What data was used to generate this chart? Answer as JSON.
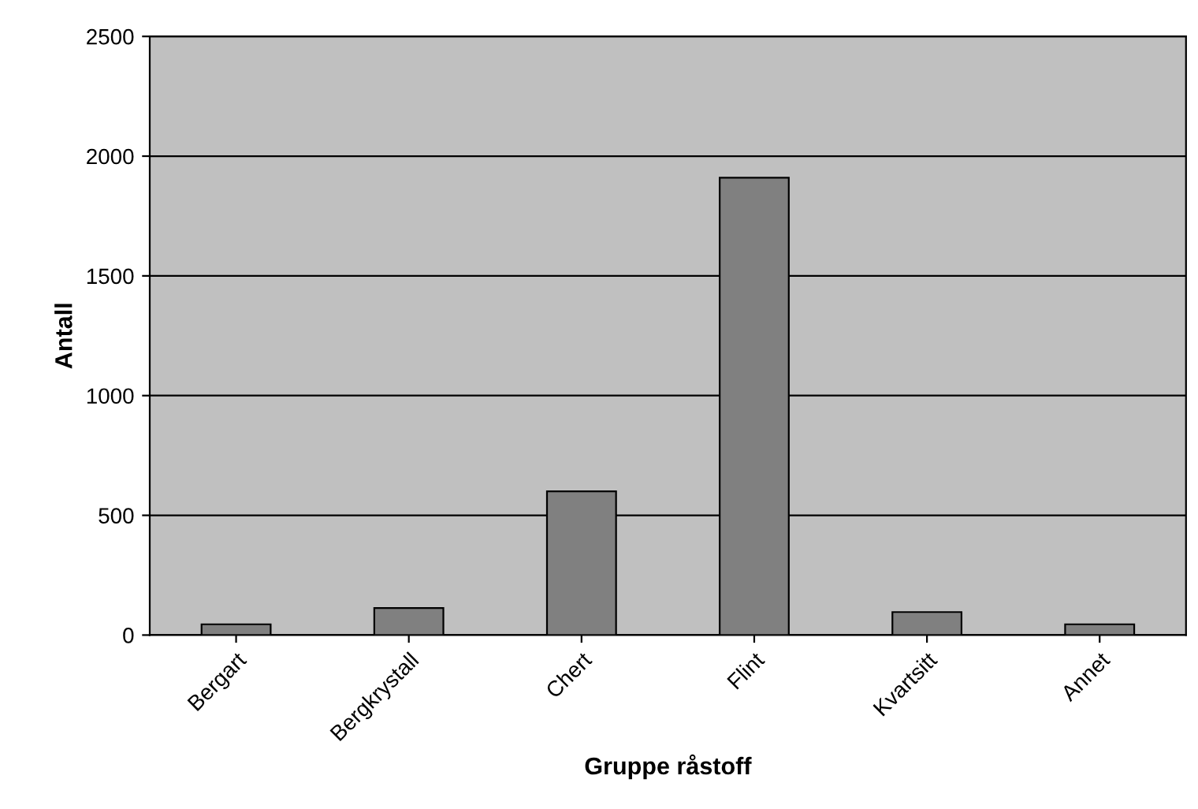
{
  "chart_data": {
    "type": "bar",
    "xlabel": "Gruppe råstoff",
    "ylabel": "Antall",
    "categories": [
      "Bergart",
      "Bergkrystall",
      "Chert",
      "Flint",
      "Kvartsitt",
      "Annet"
    ],
    "values": [
      45,
      113,
      600,
      1910,
      96,
      45
    ],
    "color": "#808080",
    "ylim": [
      0,
      2500
    ],
    "yticks": [
      0,
      500,
      1000,
      1500,
      2000,
      2500
    ],
    "grid": "y",
    "legend": false
  }
}
